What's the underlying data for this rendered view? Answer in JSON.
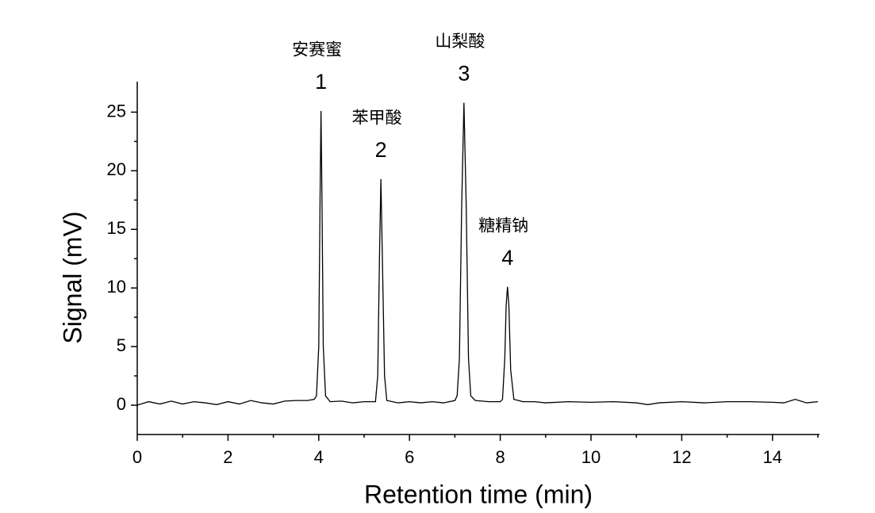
{
  "chart_data": {
    "type": "line",
    "x_label": "Retention time (min)",
    "y_label": "Signal (mV)",
    "series": [
      {
        "color": "#000000",
        "x": [
          0,
          0.25,
          0.5,
          0.75,
          1,
          1.25,
          1.5,
          1.75,
          2,
          2.25,
          2.5,
          2.75,
          3,
          3.25,
          3.5,
          3.75,
          3.9,
          3.95,
          4,
          4.03,
          4.05,
          4.07,
          4.1,
          4.15,
          4.25,
          4.5,
          4.75,
          5,
          5.25,
          5.3,
          5.34,
          5.37,
          5.4,
          5.45,
          5.5,
          5.75,
          6,
          6.25,
          6.5,
          6.75,
          7,
          7.05,
          7.1,
          7.15,
          7.2,
          7.25,
          7.3,
          7.35,
          7.45,
          7.75,
          8,
          8.05,
          8.1,
          8.13,
          8.16,
          8.19,
          8.23,
          8.3,
          8.5,
          8.75,
          9,
          9.5,
          10,
          10.5,
          11,
          11.25,
          11.5,
          12,
          12.5,
          13,
          13.5,
          14,
          14.25,
          14.5,
          14.75,
          15
        ],
        "values": [
          0,
          0.3,
          0.1,
          0.35,
          0.1,
          0.3,
          0.2,
          0.05,
          0.3,
          0.1,
          0.4,
          0.2,
          0.1,
          0.35,
          0.4,
          0.4,
          0.5,
          0.8,
          5,
          18,
          25.1,
          18,
          5,
          0.8,
          0.3,
          0.35,
          0.2,
          0.3,
          0.3,
          2.5,
          13,
          19.3,
          13,
          2.5,
          0.4,
          0.2,
          0.3,
          0.2,
          0.3,
          0.2,
          0.4,
          0.8,
          4,
          17,
          25.8,
          17,
          4,
          0.8,
          0.4,
          0.3,
          0.3,
          0.5,
          4,
          8.5,
          10.1,
          8.5,
          3,
          0.5,
          0.3,
          0.3,
          0.2,
          0.3,
          0.25,
          0.3,
          0.2,
          0.05,
          0.2,
          0.3,
          0.2,
          0.3,
          0.3,
          0.25,
          0.2,
          0.5,
          0.2,
          0.3
        ]
      }
    ],
    "annotations": [
      {
        "name": "安赛蜜",
        "label": "1"
      },
      {
        "name": "苯甲酸",
        "label": "2"
      },
      {
        "name": "山梨酸",
        "label": "3"
      },
      {
        "name": "糖精钠",
        "label": "4"
      }
    ],
    "xlim": [
      0,
      15
    ],
    "xticks": [
      0,
      2,
      4,
      6,
      8,
      10,
      12,
      14
    ],
    "ylim": [
      -2.5,
      27.6
    ],
    "yticks": [
      0,
      5,
      10,
      15,
      20,
      25
    ]
  }
}
